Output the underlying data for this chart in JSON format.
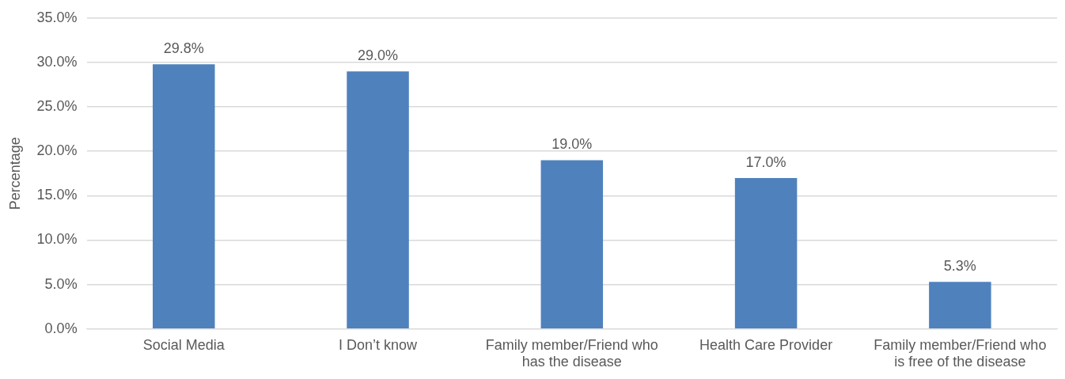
{
  "chart_data": {
    "type": "bar",
    "ylabel": "Percentage",
    "categories": [
      "Social Media",
      "I Don’t know",
      "Family member/Friend who has the disease",
      "Health Care Provider",
      "Family member/Friend who is free of the disease"
    ],
    "values": [
      29.8,
      29.0,
      19.0,
      17.0,
      5.3
    ],
    "value_labels": [
      "29.8%",
      "29.0%",
      "19.0%",
      "17.0%",
      "5.3%"
    ],
    "color": "#4f81bd",
    "ylim": [
      0,
      35
    ],
    "yticks": [
      {
        "value": 0,
        "label": "0.0%"
      },
      {
        "value": 5,
        "label": "5.0%"
      },
      {
        "value": 10,
        "label": "10.0%"
      },
      {
        "value": 15,
        "label": "15.0%"
      },
      {
        "value": 20,
        "label": "20.0%"
      },
      {
        "value": 25,
        "label": "25.0%"
      },
      {
        "value": 30,
        "label": "30.0%"
      },
      {
        "value": 35,
        "label": "35.0%"
      }
    ],
    "grid": "y",
    "legend": false
  }
}
